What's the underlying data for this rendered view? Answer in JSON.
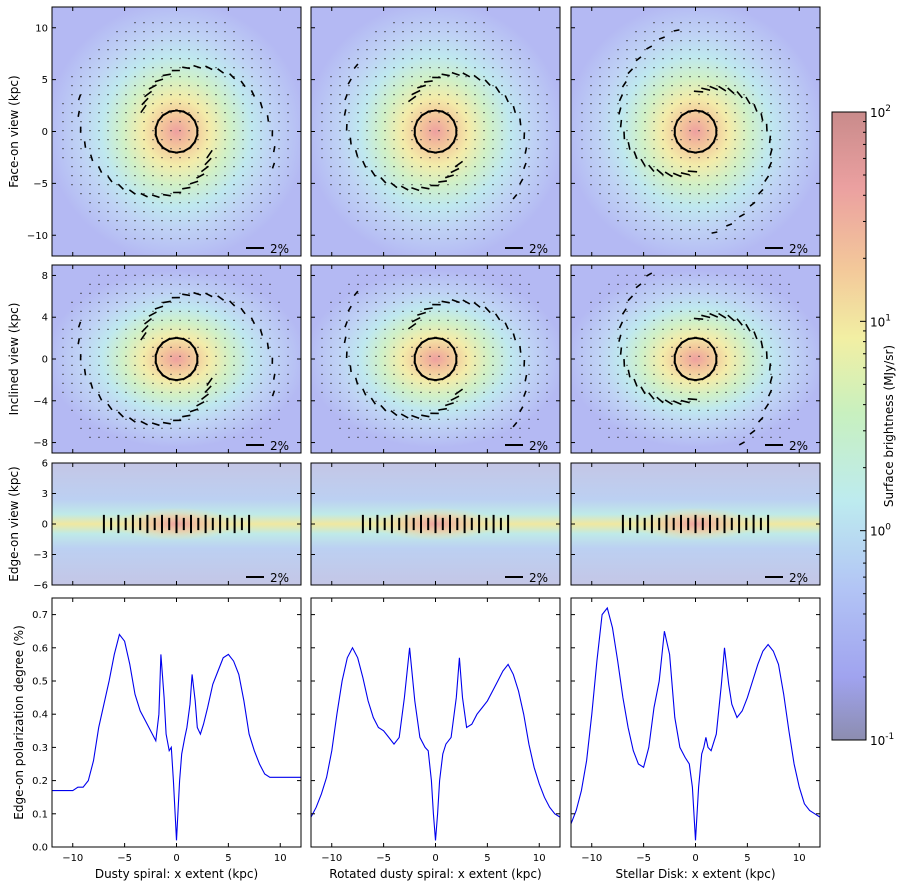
{
  "figure": {
    "row_labels": [
      "Face-on view (kpc)",
      "Inclined view (kpc)",
      "Edge-on view (kpc)",
      "Edge-on polarization degree (%)"
    ],
    "column_labels": [
      "Dusty spiral: x extent (kpc)",
      "Rotated dusty spiral: x extent (kpc)",
      "Stellar Disk: x extent (kpc)"
    ],
    "scale_bar_label": "2%"
  },
  "colorbar": {
    "label": "Surface brightness (MJy/sr)",
    "scale": "log",
    "range": [
      0.1,
      100
    ],
    "ticks": [
      {
        "base": "10",
        "exp": "2",
        "value": 100
      },
      {
        "base": "10",
        "exp": "1",
        "value": 10
      },
      {
        "base": "10",
        "exp": "0",
        "value": 1
      },
      {
        "base": "10",
        "exp": "-1",
        "value": 0.1
      }
    ]
  },
  "chart_data": [
    {
      "type": "heatmap",
      "panel": "face-on",
      "ylabel": "Face-on view (kpc)",
      "xlim": [
        -12,
        12
      ],
      "ylim": [
        -12,
        12
      ],
      "yticks": [
        10,
        5,
        0,
        -5,
        -10
      ],
      "spiral_phase_deg": [
        0,
        20,
        60
      ]
    },
    {
      "type": "heatmap",
      "panel": "inclined",
      "ylabel": "Inclined view (kpc)",
      "xlim": [
        -12,
        12
      ],
      "ylim": [
        -9,
        9
      ],
      "yticks": [
        8,
        4,
        0,
        -4,
        -8
      ],
      "spiral_phase_deg": [
        0,
        20,
        60
      ]
    },
    {
      "type": "heatmap",
      "panel": "edge-on",
      "ylabel": "Edge-on view (kpc)",
      "xlim": [
        -12,
        12
      ],
      "ylim": [
        -6,
        6
      ],
      "yticks": [
        6,
        3,
        0,
        -3,
        -6
      ],
      "vector_columns_x_kpc": [
        -7,
        -6.3,
        -5.6,
        -4.9,
        -4.2,
        -3.5,
        -2.8,
        -2.1,
        -1.4,
        -0.7,
        0,
        0.7,
        1.4,
        2.1,
        2.8,
        3.5,
        4.2,
        4.9,
        5.6,
        6.3,
        7
      ]
    },
    {
      "type": "line",
      "ylabel": "Edge-on polarization degree (%)",
      "xlim": [
        -12,
        12
      ],
      "ylim": [
        0,
        0.75
      ],
      "xticks": [
        -10,
        -5,
        0,
        5,
        10
      ],
      "yticks": [
        0.0,
        0.1,
        0.2,
        0.3,
        0.4,
        0.5,
        0.6,
        0.7
      ],
      "line_color": "#0000ee",
      "series": [
        {
          "x": [
            -12,
            -11,
            -10,
            -9.5,
            -9,
            -8.5,
            -8,
            -7.5,
            -7,
            -6.5,
            -6,
            -5.5,
            -5,
            -4.5,
            -4,
            -3.5,
            -3,
            -2.5,
            -2,
            -1.7,
            -1.5,
            -1.2,
            -1,
            -0.7,
            -0.5,
            -0.3,
            0,
            0.3,
            0.5,
            0.8,
            1,
            1.3,
            1.5,
            1.8,
            2,
            2.3,
            2.6,
            3,
            3.5,
            4,
            4.5,
            5,
            5.5,
            6,
            6.5,
            7,
            7.5,
            8,
            8.5,
            9,
            10,
            11,
            12
          ],
          "y": [
            0.17,
            0.17,
            0.17,
            0.18,
            0.18,
            0.2,
            0.26,
            0.36,
            0.43,
            0.5,
            0.58,
            0.64,
            0.62,
            0.55,
            0.46,
            0.41,
            0.38,
            0.35,
            0.32,
            0.4,
            0.58,
            0.45,
            0.34,
            0.29,
            0.3,
            0.2,
            0.02,
            0.2,
            0.28,
            0.33,
            0.36,
            0.43,
            0.52,
            0.44,
            0.36,
            0.34,
            0.37,
            0.42,
            0.49,
            0.53,
            0.57,
            0.58,
            0.56,
            0.52,
            0.44,
            0.34,
            0.29,
            0.25,
            0.22,
            0.21,
            0.21,
            0.21,
            0.21
          ]
        },
        {
          "x": [
            -12,
            -11.5,
            -11,
            -10.5,
            -10,
            -9.5,
            -9,
            -8.5,
            -8,
            -7.5,
            -7,
            -6.5,
            -6,
            -5.5,
            -5,
            -4.5,
            -4,
            -3.5,
            -3,
            -2.5,
            -2,
            -1.5,
            -1,
            -0.7,
            -0.4,
            -0.2,
            0,
            0.2,
            0.4,
            0.7,
            1,
            1.5,
            2,
            2.3,
            2.6,
            3,
            3.5,
            4,
            4.5,
            5,
            5.5,
            6,
            6.5,
            7,
            7.5,
            8,
            8.5,
            9,
            9.5,
            10,
            10.5,
            11,
            11.5,
            12
          ],
          "y": [
            0.09,
            0.12,
            0.16,
            0.21,
            0.29,
            0.4,
            0.5,
            0.57,
            0.6,
            0.57,
            0.51,
            0.44,
            0.39,
            0.36,
            0.35,
            0.33,
            0.31,
            0.33,
            0.45,
            0.6,
            0.44,
            0.33,
            0.3,
            0.29,
            0.2,
            0.1,
            0.02,
            0.1,
            0.2,
            0.28,
            0.31,
            0.33,
            0.45,
            0.57,
            0.45,
            0.36,
            0.37,
            0.4,
            0.42,
            0.44,
            0.47,
            0.5,
            0.53,
            0.55,
            0.52,
            0.47,
            0.4,
            0.31,
            0.24,
            0.19,
            0.15,
            0.12,
            0.1,
            0.09
          ]
        },
        {
          "x": [
            -12,
            -11.5,
            -11,
            -10.5,
            -10,
            -9.5,
            -9,
            -8.5,
            -8,
            -7.5,
            -7,
            -6.5,
            -6,
            -5.5,
            -5,
            -4.5,
            -4,
            -3.5,
            -3,
            -2.5,
            -2,
            -1.5,
            -1,
            -0.6,
            -0.3,
            0,
            0.3,
            0.6,
            0.8,
            1,
            1.2,
            1.5,
            2,
            2.5,
            2.8,
            3.2,
            3.5,
            4,
            4.5,
            5,
            5.5,
            6,
            6.5,
            7,
            7.5,
            8,
            8.5,
            9,
            9.5,
            10,
            10.5,
            11,
            11.5,
            12
          ],
          "y": [
            0.07,
            0.11,
            0.17,
            0.26,
            0.4,
            0.56,
            0.7,
            0.72,
            0.66,
            0.56,
            0.45,
            0.36,
            0.29,
            0.25,
            0.24,
            0.3,
            0.42,
            0.5,
            0.65,
            0.58,
            0.39,
            0.3,
            0.27,
            0.25,
            0.18,
            0.02,
            0.18,
            0.28,
            0.3,
            0.33,
            0.3,
            0.29,
            0.34,
            0.49,
            0.6,
            0.49,
            0.43,
            0.39,
            0.41,
            0.45,
            0.5,
            0.55,
            0.59,
            0.61,
            0.59,
            0.55,
            0.46,
            0.35,
            0.25,
            0.18,
            0.13,
            0.11,
            0.1,
            0.09
          ]
        }
      ]
    }
  ]
}
